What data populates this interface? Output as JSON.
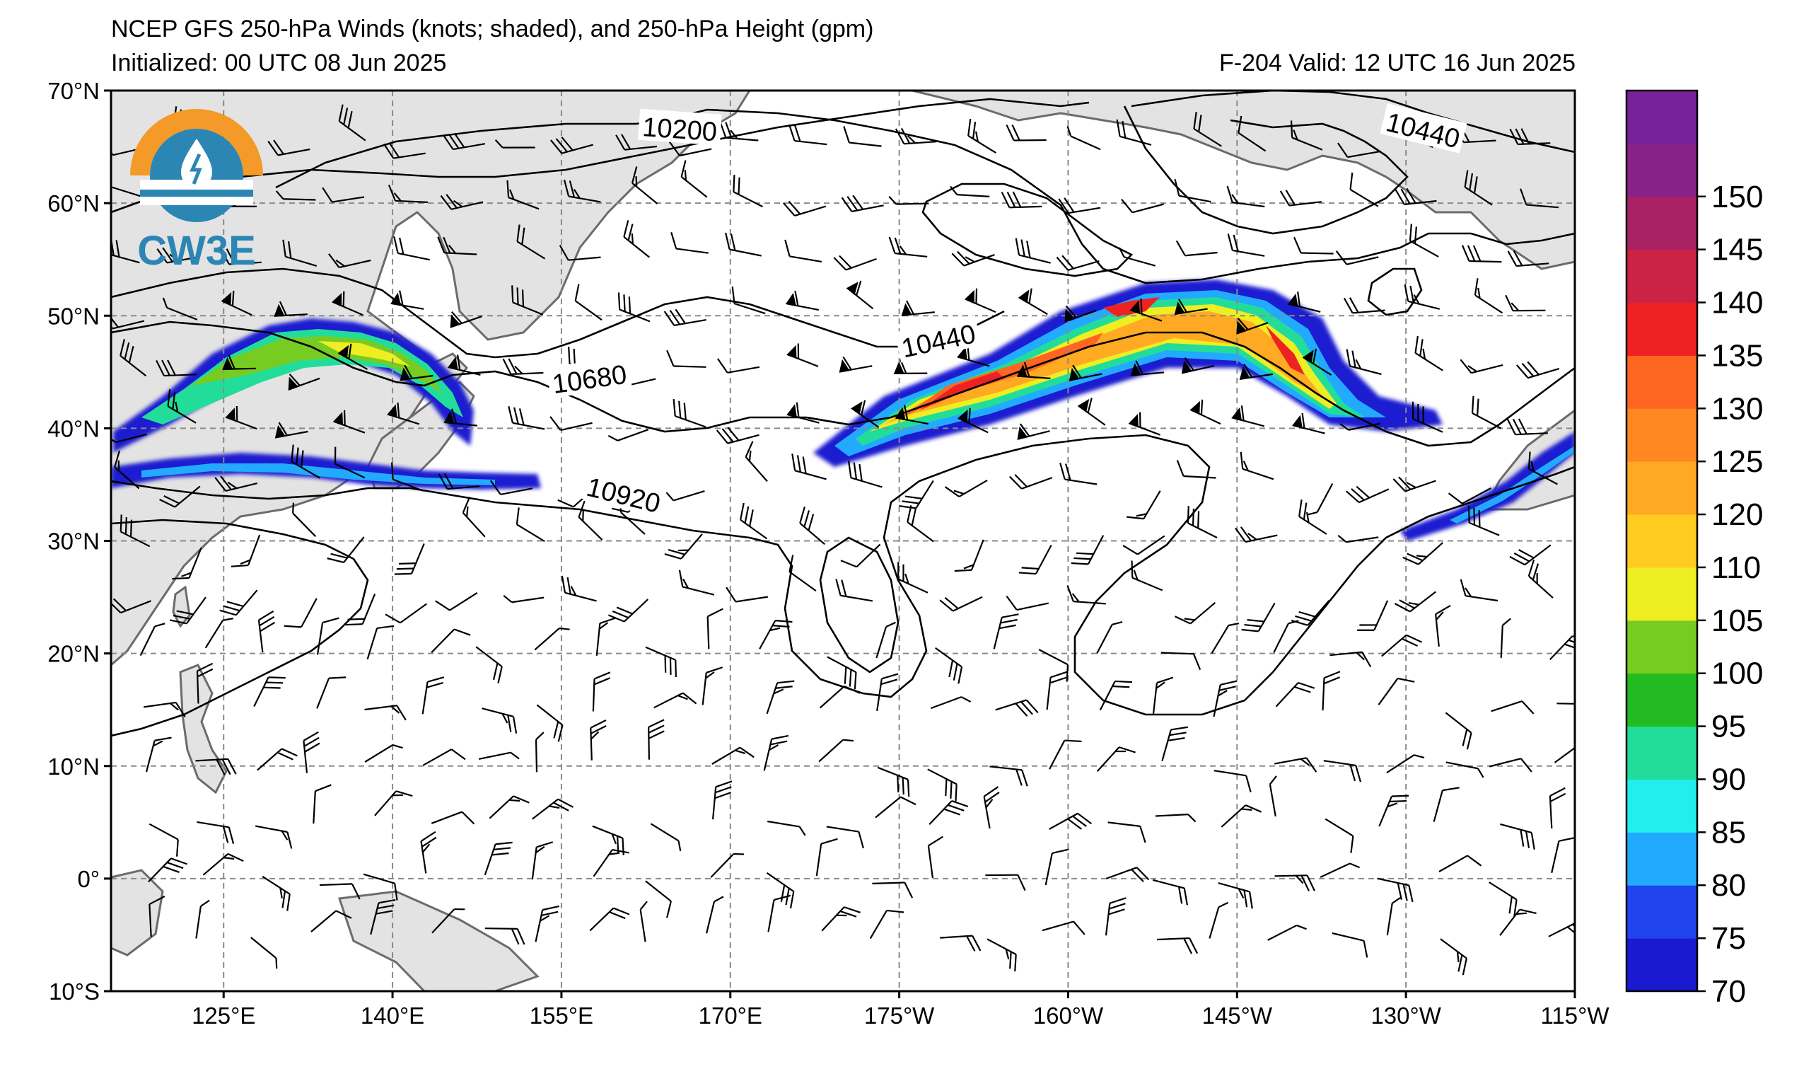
{
  "header": {
    "title": "NCEP GFS 250-hPa Winds (knots; shaded), and 250-hPa Height (gpm)",
    "initialized": "Initialized: 00 UTC 08 Jun 2025",
    "valid": "F-204  Valid: 12 UTC 16 Jun 2025"
  },
  "logo": {
    "text": "CW3E",
    "name": "cw3e-logo"
  },
  "map": {
    "projection": "cylindrical",
    "lon_range": [
      115,
      245
    ],
    "lat_range": [
      -10,
      70
    ],
    "grid": true,
    "land_color": "#e3e3e3",
    "ocean_color": "#ffffff",
    "coast_color": "#6b6b6b",
    "lat_labels": [
      "70°N",
      "60°N",
      "50°N",
      "40°N",
      "30°N",
      "20°N",
      "10°N",
      "0°",
      "10°S"
    ],
    "lat_values": [
      70,
      60,
      50,
      40,
      30,
      20,
      10,
      0,
      -10
    ],
    "lon_labels": [
      "125°E",
      "140°E",
      "155°E",
      "170°E",
      "175°W",
      "160°W",
      "145°W",
      "130°W",
      "115°W"
    ],
    "lon_values": [
      125,
      140,
      155,
      170,
      185,
      200,
      215,
      230,
      245
    ]
  },
  "contours": {
    "labels": [
      {
        "text": "10200",
        "lon": 165.5,
        "lat": 66.5,
        "rotate": 4
      },
      {
        "text": "10440",
        "lon": 231.5,
        "lat": 66.4,
        "rotate": 14
      },
      {
        "text": "10440",
        "lon": 188.5,
        "lat": 47.7,
        "rotate": -12
      },
      {
        "text": "10680",
        "lon": 157.5,
        "lat": 44.3,
        "rotate": -8
      },
      {
        "text": "10920",
        "lon": 160.5,
        "lat": 34.0,
        "rotate": 14
      }
    ]
  },
  "jets": [
    {
      "name": "north-pacific-jet",
      "peak_kt": 135
    },
    {
      "name": "japan-jet-north",
      "peak_kt": 105
    },
    {
      "name": "japan-jet-south",
      "peak_kt": 85
    },
    {
      "name": "california-jet",
      "peak_kt": 80
    }
  ],
  "colorbar": {
    "ticks": [
      "70",
      "75",
      "80",
      "85",
      "90",
      "95",
      "100",
      "105",
      "110",
      "120",
      "125",
      "130",
      "135",
      "140",
      "145",
      "150"
    ],
    "colors": [
      "#1a1ad0",
      "#2244ee",
      "#22aaff",
      "#22eeee",
      "#22dd99",
      "#22bb22",
      "#77cc22",
      "#eeee22",
      "#ffcc22",
      "#ffaa22",
      "#ff8822",
      "#ff6622",
      "#ee2222",
      "#cc2244",
      "#aa2266",
      "#882288",
      "#772299"
    ]
  }
}
